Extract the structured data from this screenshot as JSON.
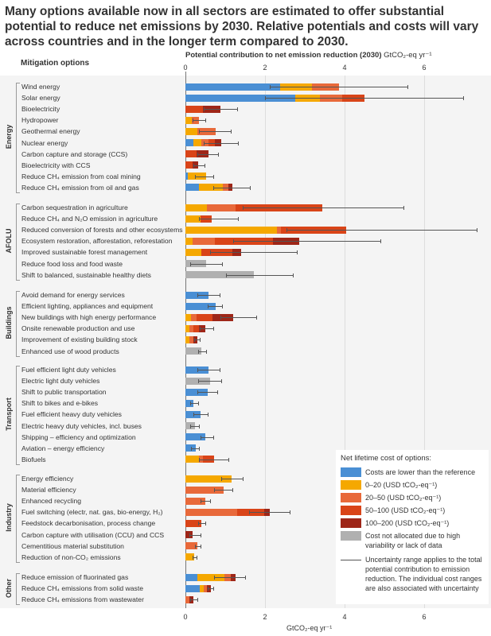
{
  "title": "Many options available now in all sectors are estimated to offer substantial potential to reduce net emissions by 2030. Relative potentials and costs will vary across countries and in the longer term compared to 2030.",
  "chart_data": {
    "type": "bar",
    "orientation": "horizontal-stacked",
    "row_header": "Mitigation options",
    "xlabel_top": "Potential contribution to net emission reduction (2030)",
    "xunit": "GtCO₂-eq yr⁻¹",
    "xlim": [
      0,
      7.5
    ],
    "xticks": [
      "0",
      "2",
      "4",
      "6"
    ],
    "grid": true,
    "legend_position": "bottom-right",
    "legend": {
      "title": "Net lifetime cost of options:",
      "items": [
        {
          "key": "lower",
          "label": "Costs are lower than the reference",
          "color": "#4a8fd4"
        },
        {
          "key": "c0_20",
          "label": "0–20 (USD tCO₂-eq⁻¹)",
          "color": "#f5a800"
        },
        {
          "key": "c20_50",
          "label": "20–50 (USD tCO₂-eq⁻¹)",
          "color": "#e8693a"
        },
        {
          "key": "c50_100",
          "label": "50–100 (USD tCO₂-eq⁻¹)",
          "color": "#d94418"
        },
        {
          "key": "c100_200",
          "label": "100–200 (USD tCO₂-eq⁻¹)",
          "color": "#9e2618"
        },
        {
          "key": "na",
          "label": "Cost not allocated due to high variability or lack of data",
          "color": "#b0b0b0"
        }
      ],
      "uncertainty_note": "Uncertainty range applies to the total potential contribution to emission reduction. The individual cost ranges are also associated with uncertainty"
    },
    "sectors": [
      {
        "name": "Energy",
        "options": [
          {
            "label": "Wind energy",
            "segments": [
              [
                "lower",
                2.37
              ],
              [
                "c0_20",
                0.8
              ],
              [
                "c20_50",
                0.68
              ]
            ],
            "range": [
              2.12,
              5.58
            ]
          },
          {
            "label": "Solar energy",
            "segments": [
              [
                "lower",
                2.75
              ],
              [
                "c0_20",
                0.62
              ],
              [
                "c20_50",
                0.56
              ],
              [
                "c50_100",
                0.56
              ]
            ],
            "range": [
              2.0,
              6.98
            ]
          },
          {
            "label": "Bioelectricity",
            "segments": [
              [
                "c50_100",
                0.43
              ],
              [
                "c100_200",
                0.45
              ]
            ],
            "range": [
              0.45,
              1.3
            ]
          },
          {
            "label": "Hydropower",
            "segments": [
              [
                "c0_20",
                0.15
              ],
              [
                "c20_50",
                0.18
              ]
            ],
            "range": [
              0.17,
              0.5
            ]
          },
          {
            "label": "Geothermal energy",
            "segments": [
              [
                "c0_20",
                0.3
              ],
              [
                "c20_50",
                0.45
              ]
            ],
            "range": [
              0.33,
              1.13
            ]
          },
          {
            "label": "Nuclear energy",
            "segments": [
              [
                "lower",
                0.2
              ],
              [
                "c0_20",
                0.2
              ],
              [
                "c20_50",
                0.17
              ],
              [
                "c50_100",
                0.16
              ],
              [
                "c100_200",
                0.17
              ]
            ],
            "range": [
              0.45,
              1.32
            ]
          },
          {
            "label": "Carbon capture and storage (CCS)",
            "segments": [
              [
                "c50_100",
                0.27
              ],
              [
                "c100_200",
                0.3
              ]
            ],
            "range": [
              0.3,
              0.81
            ]
          },
          {
            "label": "Bioelectricity with CCS",
            "segments": [
              [
                "c50_100",
                0.17
              ],
              [
                "c100_200",
                0.15
              ]
            ],
            "range": [
              0.2,
              0.47
            ]
          },
          {
            "label": "Reduce CH₄ emission from coal mining",
            "segments": [
              [
                "lower",
                0.05
              ],
              [
                "c0_20",
                0.46
              ]
            ],
            "range": [
              0.23,
              0.7
            ]
          },
          {
            "label": "Reduce CH₄ emission from oil and gas",
            "segments": [
              [
                "lower",
                0.33
              ],
              [
                "c0_20",
                0.6
              ],
              [
                "c20_50",
                0.14
              ],
              [
                "c100_200",
                0.1
              ]
            ],
            "range": [
              0.69,
              1.62
            ]
          }
        ]
      },
      {
        "name": "AFOLU",
        "options": [
          {
            "label": "Carbon sequestration in agriculture",
            "segments": [
              [
                "c0_20",
                0.53
              ],
              [
                "c20_50",
                0.72
              ],
              [
                "c50_100",
                2.18
              ]
            ],
            "range": [
              1.43,
              5.48
            ]
          },
          {
            "label": "Reduce CH₄ and N₂O emission in agriculture",
            "segments": [
              [
                "c0_20",
                0.37
              ],
              [
                "c50_100",
                0.28
              ]
            ],
            "range": [
              0.33,
              1.31
            ]
          },
          {
            "label": "Reduced conversion of forests and other ecosystems",
            "segments": [
              [
                "c0_20",
                2.29
              ],
              [
                "c20_50",
                0.11
              ],
              [
                "c50_100",
                1.63
              ]
            ],
            "range": [
              2.53,
              7.32
            ]
          },
          {
            "label": "Ecosystem restoration, afforestation, reforestation",
            "segments": [
              [
                "c0_20",
                0.17
              ],
              [
                "c20_50",
                0.56
              ],
              [
                "c50_100",
                1.47
              ],
              [
                "c100_200",
                0.65
              ]
            ],
            "range": [
              1.2,
              4.9
            ]
          },
          {
            "label": "Improved sustainable forest management",
            "segments": [
              [
                "c0_20",
                0.4
              ],
              [
                "c50_100",
                0.77
              ],
              [
                "c100_200",
                0.22
              ]
            ],
            "range": [
              0.61,
              2.8
            ]
          },
          {
            "label": "Reduce food loss and food waste",
            "segments": [
              [
                "na",
                0.51
              ]
            ],
            "range": [
              0.12,
              0.91
            ]
          },
          {
            "label": "Shift to balanced, sustainable healthy diets",
            "segments": [
              [
                "na",
                1.71
              ]
            ],
            "range": [
              1.02,
              2.7
            ]
          }
        ]
      },
      {
        "name": "Buildings",
        "options": [
          {
            "label": "Avoid demand for energy services",
            "segments": [
              [
                "lower",
                0.58
              ]
            ],
            "range": [
              0.3,
              0.85
            ]
          },
          {
            "label": "Efficient lighting, appliances and equipment",
            "segments": [
              [
                "lower",
                0.75
              ]
            ],
            "range": [
              0.55,
              0.92
            ]
          },
          {
            "label": "New buildings with high energy performance",
            "segments": [
              [
                "c0_20",
                0.13
              ],
              [
                "c20_50",
                0.14
              ],
              [
                "c50_100",
                0.4
              ],
              [
                "c100_200",
                0.53
              ]
            ],
            "range": [
              0.87,
              1.78
            ]
          },
          {
            "label": "Onsite renewable production and use",
            "segments": [
              [
                "c0_20",
                0.09
              ],
              [
                "c20_50",
                0.11
              ],
              [
                "c50_100",
                0.13
              ],
              [
                "c100_200",
                0.16
              ]
            ],
            "range": [
              0.35,
              0.7
            ]
          },
          {
            "label": "Improvement of existing building stock",
            "segments": [
              [
                "c0_20",
                0.09
              ],
              [
                "c20_50",
                0.11
              ],
              [
                "c100_200",
                0.09
              ]
            ],
            "range": [
              0.22,
              0.35
            ]
          },
          {
            "label": "Enhanced use of wood products",
            "segments": [
              [
                "na",
                0.4
              ]
            ],
            "range": [
              0.31,
              0.52
            ]
          }
        ]
      },
      {
        "name": "Transport",
        "options": [
          {
            "label": "Fuel efficient light duty vehicles",
            "segments": [
              [
                "lower",
                0.58
              ]
            ],
            "range": [
              0.3,
              0.85
            ]
          },
          {
            "label": "Electric light duty vehicles",
            "segments": [
              [
                "na",
                0.61
              ]
            ],
            "range": [
              0.32,
              0.9
            ]
          },
          {
            "label": "Shift to public transportation",
            "segments": [
              [
                "lower",
                0.55
              ]
            ],
            "range": [
              0.3,
              0.8
            ]
          },
          {
            "label": "Shift to bikes and e-bikes",
            "segments": [
              [
                "lower",
                0.2
              ]
            ],
            "range": [
              0.12,
              0.31
            ]
          },
          {
            "label": "Fuel efficient heavy duty vehicles",
            "segments": [
              [
                "lower",
                0.38
              ]
            ],
            "range": [
              0.2,
              0.55
            ]
          },
          {
            "label": "Electric heavy duty vehicles, incl. buses",
            "segments": [
              [
                "na",
                0.23
              ]
            ],
            "range": [
              0.12,
              0.33
            ]
          },
          {
            "label": "Shipping – efficiency and optimization",
            "segments": [
              [
                "lower",
                0.49
              ]
            ],
            "range": [
              0.37,
              0.69
            ]
          },
          {
            "label": "Aviation – energy efficiency",
            "segments": [
              [
                "lower",
                0.25
              ]
            ],
            "range": [
              0.13,
              0.33
            ]
          },
          {
            "label": "Biofuels",
            "segments": [
              [
                "c0_20",
                0.33
              ],
              [
                "c20_50",
                0.1
              ],
              [
                "c50_100",
                0.29
              ]
            ],
            "range": [
              0.33,
              1.07
            ]
          }
        ]
      },
      {
        "name": "Industry",
        "options": [
          {
            "label": "Energy efficiency",
            "segments": [
              [
                "c0_20",
                1.15
              ]
            ],
            "range": [
              0.89,
              1.43
            ]
          },
          {
            "label": "Material efficiency",
            "segments": [
              [
                "c20_50",
                0.95
              ]
            ],
            "range": [
              0.72,
              1.17
            ]
          },
          {
            "label": "Enhanced recycling",
            "segments": [
              [
                "c20_50",
                0.5
              ]
            ],
            "range": [
              0.38,
              0.61
            ]
          },
          {
            "label": "Fuel switching (electr, nat. gas, bio-energy, H₂)",
            "segments": [
              [
                "c20_50",
                1.3
              ],
              [
                "c50_100",
                0.67
              ],
              [
                "c100_200",
                0.14
              ]
            ],
            "range": [
              1.6,
              2.62
            ]
          },
          {
            "label": "Feedstock decarbonisation, process change",
            "segments": [
              [
                "c50_100",
                0.4
              ]
            ],
            "range": [
              0.32,
              0.5
            ]
          },
          {
            "label": "Carbon capture with utilisation (CCU) and CCS",
            "segments": [
              [
                "c100_200",
                0.17
              ]
            ],
            "range": [
              0.1,
              0.38
            ]
          },
          {
            "label": "Cementitious material substitution",
            "segments": [
              [
                "c20_50",
                0.3
              ]
            ],
            "range": [
              0.23,
              0.37
            ]
          },
          {
            "label": "Reduction of non-CO₂ emissions",
            "segments": [
              [
                "c0_20",
                0.22
              ]
            ],
            "range": [
              0.17,
              0.27
            ]
          }
        ]
      },
      {
        "name": "Other",
        "options": [
          {
            "label": "Reduce emission of fluorinated gas",
            "segments": [
              [
                "lower",
                0.29
              ],
              [
                "c0_20",
                0.68
              ],
              [
                "c20_50",
                0.16
              ],
              [
                "c100_200",
                0.12
              ]
            ],
            "range": [
              0.72,
              1.5
            ]
          },
          {
            "label": "Reduce CH₄ emissions from solid waste",
            "segments": [
              [
                "lower",
                0.35
              ],
              [
                "c0_20",
                0.1
              ],
              [
                "c20_50",
                0.08
              ],
              [
                "c100_200",
                0.1
              ]
            ],
            "range": [
              0.55,
              0.7
            ]
          },
          {
            "label": "Reduce CH₄ emissions from wastewater",
            "segments": [
              [
                "c20_50",
                0.09
              ],
              [
                "c100_200",
                0.11
              ]
            ],
            "range": [
              0.12,
              0.29
            ]
          }
        ]
      }
    ]
  }
}
